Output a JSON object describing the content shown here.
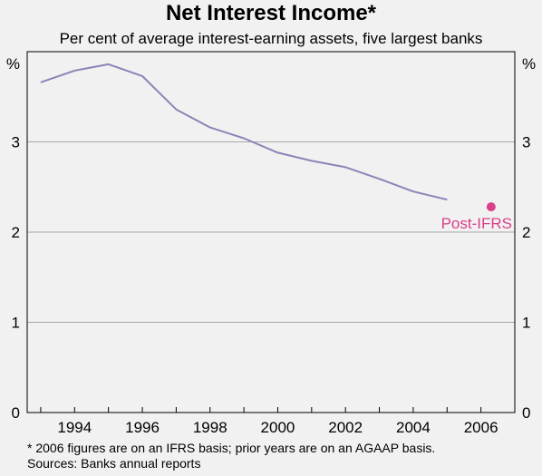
{
  "header": {
    "title": "Net Interest Income*",
    "subtitle": "Per cent of average interest-earning assets, five largest banks"
  },
  "footer": {
    "note": "*  2006 figures are on an IFRS basis; prior years are on an AGAAP basis.",
    "sources": "Sources: Banks  annual reports"
  },
  "chart_data": {
    "type": "line",
    "title": "Net Interest Income*",
    "subtitle": "Per cent of average interest-earning assets, five largest banks",
    "xlabel": "",
    "ylabel": "%",
    "ylabel_right": "%",
    "xlim": [
      1992.6,
      2007.0
    ],
    "ylim": [
      0,
      4
    ],
    "x_ticks": [
      1994,
      1996,
      1998,
      2000,
      2002,
      2004,
      2006
    ],
    "y_ticks": [
      0,
      1,
      2,
      3
    ],
    "grid": true,
    "series": [
      {
        "name": "",
        "color": "#8a85b8",
        "x": [
          1993,
          1994,
          1995,
          1996,
          1997,
          1998,
          1999,
          2000,
          2001,
          2002,
          2003,
          2004,
          2005
        ],
        "y": [
          3.66,
          3.79,
          3.86,
          3.73,
          3.36,
          3.16,
          3.04,
          2.88,
          2.79,
          2.72,
          2.59,
          2.45,
          2.36
        ]
      }
    ],
    "points": [
      {
        "label": "Post-IFRS",
        "x": 2006.3,
        "y": 2.28,
        "color": "#d8418a"
      }
    ]
  }
}
